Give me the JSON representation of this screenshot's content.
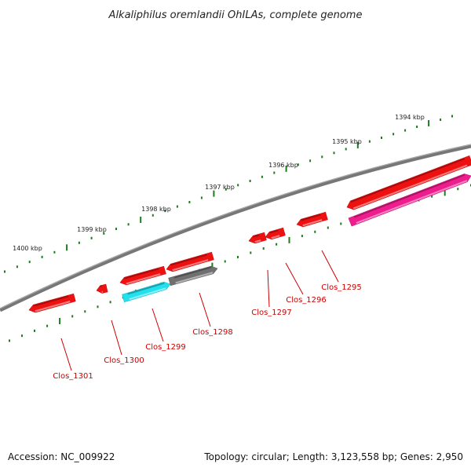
{
  "title": "Alkaliphilus oremlandii OhILAs, complete genome",
  "footer": {
    "accession": "Accession: NC_009922",
    "summary": "Topology: circular; Length: 3,123,558 bp; Genes: 2,950"
  },
  "colors": {
    "backbone": "#777777",
    "tick": "#1f7a1f",
    "gene_red": "#ee1111",
    "gene_cyan": "#22e0ee",
    "gene_gray": "#707070",
    "gene_pink": "#ee1c8c",
    "label": "#cc0000"
  },
  "ticks": [
    {
      "label": "1400 kbp"
    },
    {
      "label": "1399 kbp"
    },
    {
      "label": "1398 kbp"
    },
    {
      "label": "1397 kbp"
    },
    {
      "label": "1396 kbp"
    },
    {
      "label": "1395 kbp"
    },
    {
      "label": "1394 kbp"
    }
  ],
  "genes": [
    {
      "label": "Clos_1301"
    },
    {
      "label": "Clos_1300"
    },
    {
      "label": "Clos_1299"
    },
    {
      "label": "Clos_1298"
    },
    {
      "label": "Clos_1297"
    },
    {
      "label": "Clos_1296"
    },
    {
      "label": "Clos_1295"
    }
  ]
}
